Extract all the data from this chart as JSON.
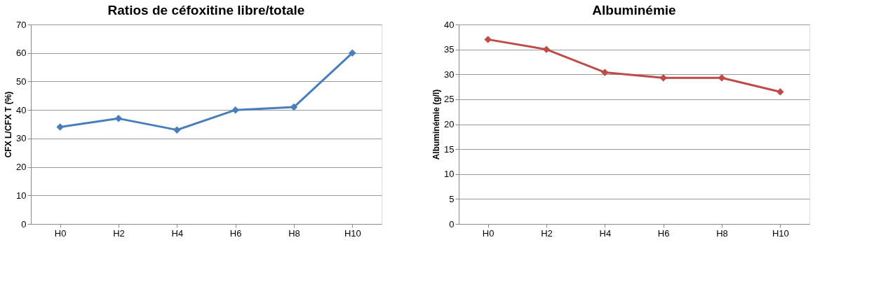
{
  "chart_data": [
    {
      "type": "line",
      "title": "Ratios de céfoxitine libre/totale",
      "ylabel": "CFX L/CFX T (%)",
      "categories": [
        "H0",
        "H2",
        "H4",
        "H6",
        "H8",
        "H10"
      ],
      "series": [
        {
          "color": "#4a7ebb",
          "values": [
            34,
            37,
            33,
            40,
            41,
            60
          ]
        }
      ],
      "ylim": [
        0,
        70
      ],
      "yticks": [
        0,
        10,
        20,
        30,
        40,
        50,
        60,
        70
      ],
      "grid": "y",
      "marker": "diamond",
      "line_style": "solid"
    },
    {
      "type": "line",
      "title": "Albuminémie",
      "ylabel": "Albuminémie (g/l)",
      "categories": [
        "H0",
        "H2",
        "H4",
        "H6",
        "H8",
        "H10"
      ],
      "series": [
        {
          "color": "#be4b48",
          "values": [
            37,
            35,
            30.4,
            29.3,
            29.3,
            26.5
          ]
        }
      ],
      "ylim": [
        0,
        40
      ],
      "yticks": [
        0,
        5,
        10,
        15,
        20,
        25,
        30,
        35,
        40
      ],
      "grid": "y",
      "marker": "diamond",
      "line_style": "solid"
    }
  ]
}
